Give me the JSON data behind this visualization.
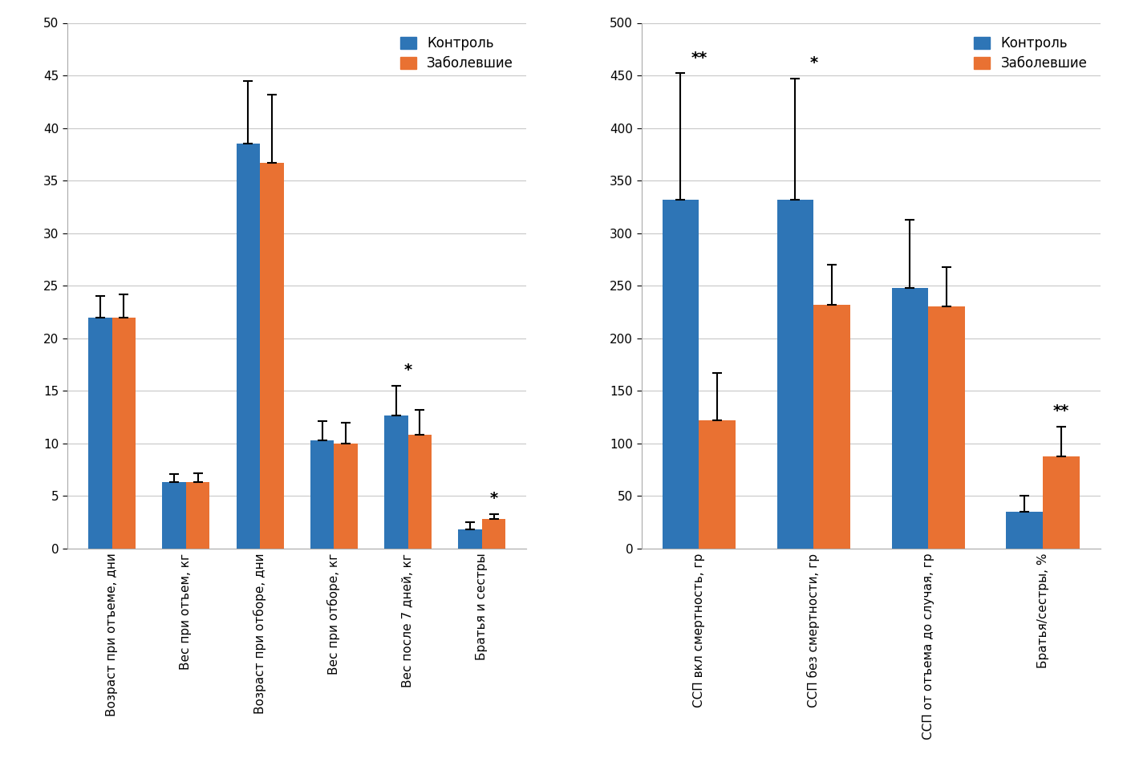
{
  "chart1": {
    "categories": [
      "Возраст при отъеме, дни",
      "Вес при отъем, кг",
      "Возраст при отборе, дни",
      "Вес при отборе, кг",
      "Вес после 7 дней, кг",
      "Братья и сестры"
    ],
    "control_values": [
      22.0,
      6.3,
      38.5,
      10.3,
      12.7,
      1.8
    ],
    "sick_values": [
      22.0,
      6.3,
      36.7,
      10.0,
      10.8,
      2.8
    ],
    "control_errors": [
      2.0,
      0.8,
      6.0,
      1.8,
      2.8,
      0.7
    ],
    "sick_errors": [
      2.2,
      0.9,
      6.5,
      2.0,
      2.4,
      0.5
    ],
    "ylim": [
      0,
      50
    ],
    "yticks": [
      0,
      5,
      10,
      15,
      20,
      25,
      30,
      35,
      40,
      45,
      50
    ],
    "significance": [
      "",
      "",
      "",
      "",
      "*",
      "*"
    ],
    "sig_on_right": [
      false,
      false,
      false,
      false,
      false,
      true
    ]
  },
  "chart2": {
    "categories": [
      "ССП вкл смертность, гр",
      "ССП без смертности, гр",
      "ССП от отъема до случая, гр",
      "Братья/сестры, %"
    ],
    "control_values": [
      332,
      332,
      248,
      35
    ],
    "sick_values": [
      122,
      232,
      230,
      88
    ],
    "control_errors": [
      120,
      115,
      65,
      15
    ],
    "sick_errors": [
      45,
      38,
      38,
      28
    ],
    "ylim": [
      0,
      500
    ],
    "yticks": [
      0,
      50,
      100,
      150,
      200,
      250,
      300,
      350,
      400,
      450,
      500
    ],
    "significance": [
      "**",
      "*",
      "",
      "**"
    ],
    "sig_on_right": [
      false,
      false,
      false,
      true
    ]
  },
  "blue_color": "#2E75B6",
  "orange_color": "#E97132",
  "legend_control": "Контроль",
  "legend_sick": "Заболевшие",
  "background_color": "#FFFFFF",
  "panel_color": "#F2F2F2",
  "grid_color": "#C8C8C8",
  "bar_width": 0.32,
  "error_capsize": 4,
  "error_linewidth": 1.5,
  "error_color": "black",
  "fontsize_ticks": 11,
  "fontsize_legend": 12,
  "fontsize_sig": 14
}
